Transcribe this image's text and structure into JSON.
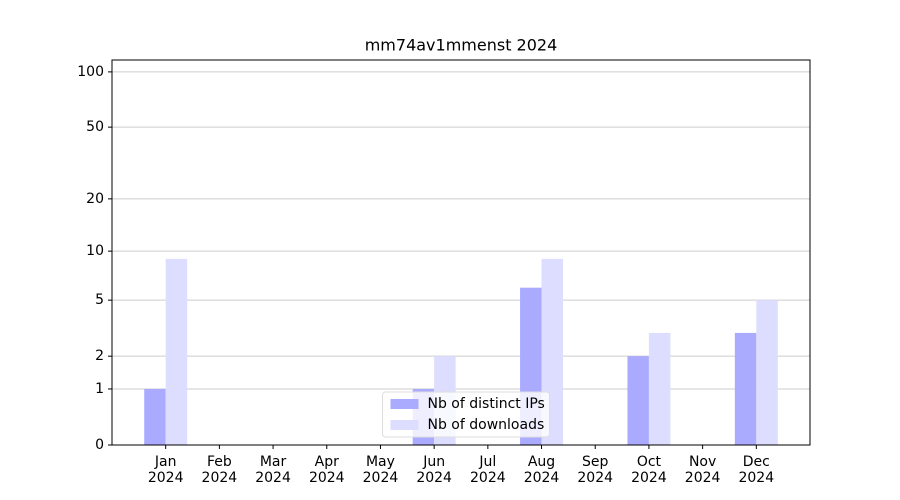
{
  "chart_data": {
    "type": "bar",
    "title": "mm74av1mmenst 2024",
    "categories": [
      "Jan\n2024",
      "Feb\n2024",
      "Mar\n2024",
      "Apr\n2024",
      "May\n2024",
      "Jun\n2024",
      "Jul\n2024",
      "Aug\n2024",
      "Sep\n2024",
      "Oct\n2024",
      "Nov\n2024",
      "Dec\n2024"
    ],
    "series": [
      {
        "name": "Nb of distinct IPs",
        "color": "#aaaaff",
        "values": [
          1,
          0,
          0,
          0,
          0,
          1,
          0,
          6,
          0,
          2,
          0,
          3
        ]
      },
      {
        "name": "Nb of downloads",
        "color": "#ddddff",
        "values": [
          9,
          0,
          0,
          0,
          0,
          2,
          0,
          9,
          0,
          3,
          0,
          5
        ]
      }
    ],
    "yscale": "log1p",
    "ylim": [
      0,
      116
    ],
    "yticks": [
      0,
      1,
      2,
      5,
      10,
      20,
      50,
      100
    ],
    "grid": true,
    "legend": "lower center"
  }
}
